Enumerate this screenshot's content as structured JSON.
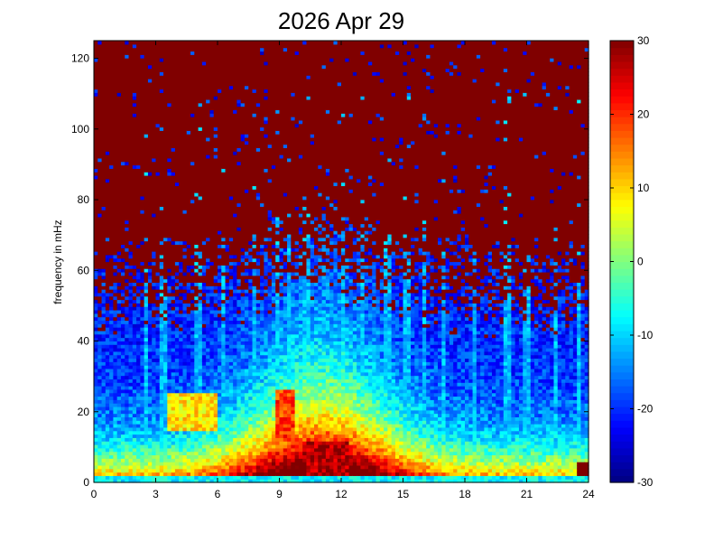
{
  "chart_data": {
    "type": "heatmap",
    "title": "2026 Apr 29",
    "xlabel": "",
    "ylabel": "frequency in mHz",
    "xlim": [
      0,
      24
    ],
    "ylim": [
      0,
      125
    ],
    "x_ticks": [
      0,
      3,
      6,
      9,
      12,
      15,
      18,
      21,
      24
    ],
    "y_ticks": [
      0,
      20,
      40,
      60,
      80,
      100,
      120
    ],
    "colorbar": {
      "range": [
        -30,
        30
      ],
      "ticks": [
        -30,
        -20,
        -10,
        0,
        10,
        20,
        30
      ],
      "colormap": "jet"
    },
    "grid": false,
    "time_bins": 128,
    "freq_bins": 128,
    "features": {
      "low_frequency_peak": {
        "x_range": [
          10.5,
          12.3
        ],
        "y_range": [
          0,
          12
        ],
        "value": 25
      },
      "mid_activity_band": {
        "x_range": [
          8.5,
          13.5
        ],
        "y_range": [
          0,
          30
        ],
        "value": 12
      },
      "background_high_freq": {
        "y_range": [
          60,
          125
        ],
        "value": 30
      },
      "noise_floor": {
        "y_range": [
          2,
          55
        ],
        "value": -25
      }
    },
    "colors": {
      "jet_low": "#00007f",
      "jet_mid": "#7fff7f",
      "jet_high": "#7f0000"
    }
  }
}
